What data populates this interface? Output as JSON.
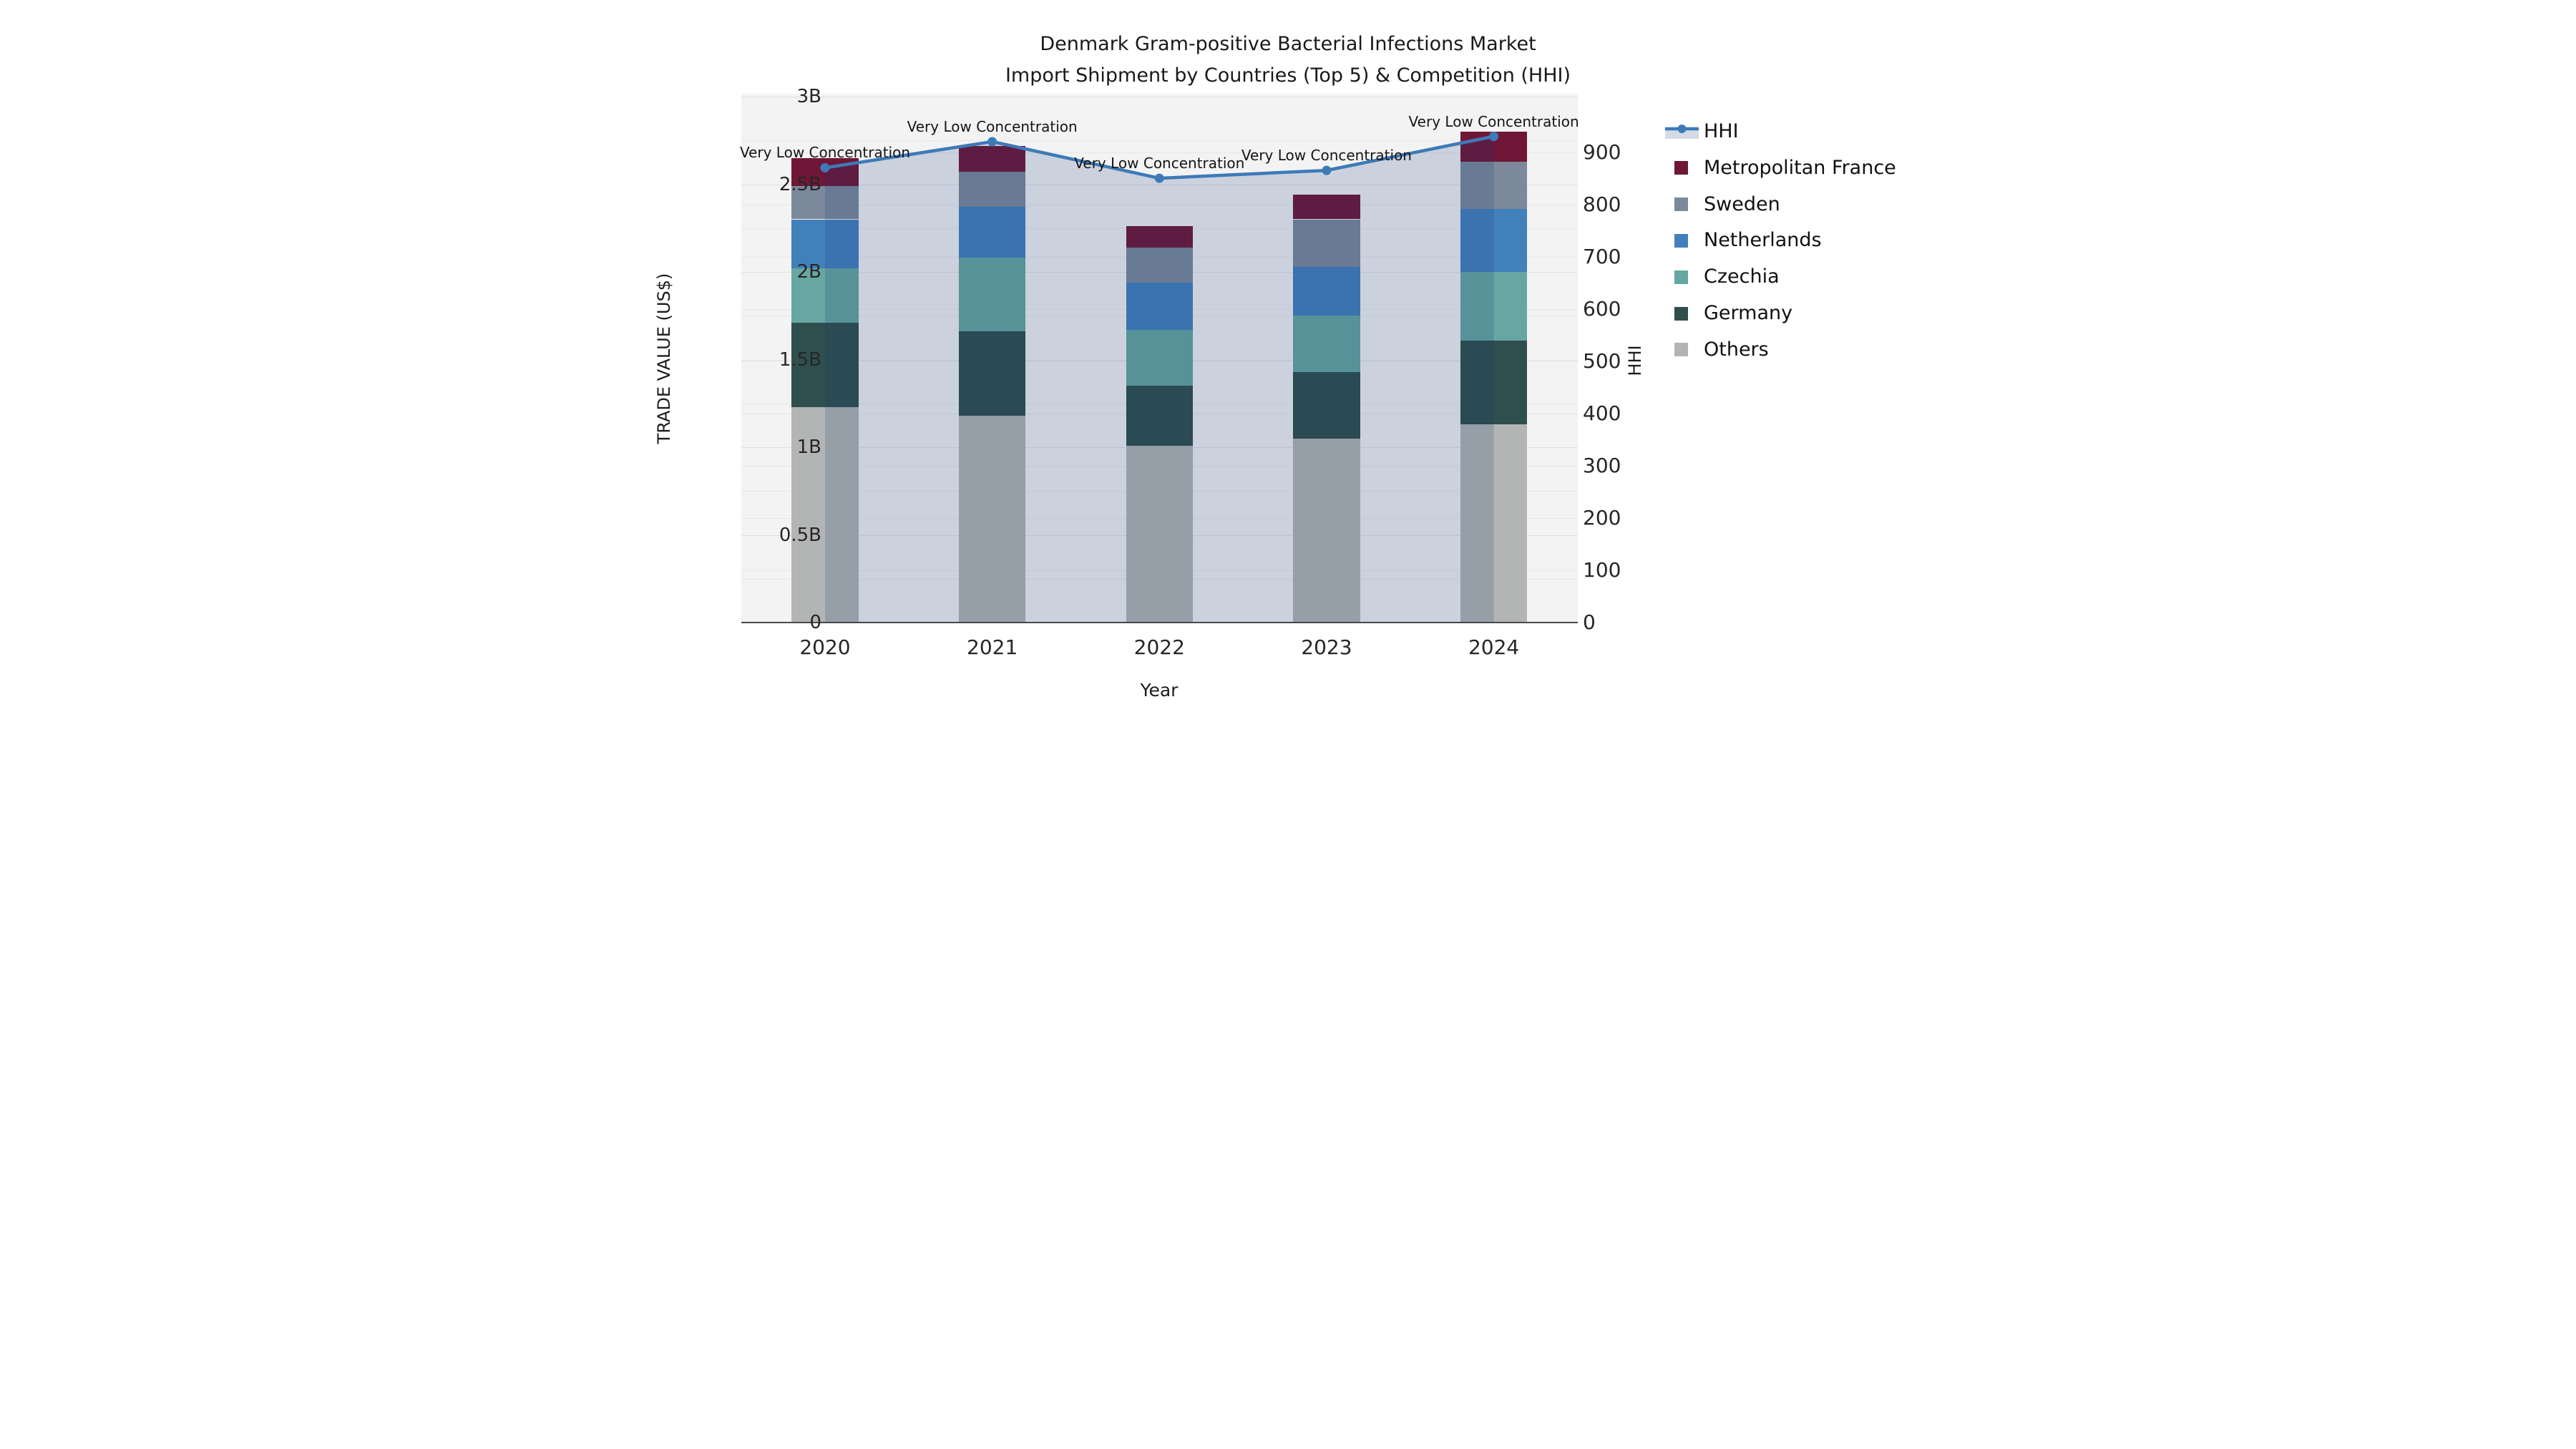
{
  "title": {
    "line1": "Denmark Gram-positive Bacterial Infections Market",
    "line2": "Import Shipment by Countries (Top 5) & Competition (HHI)"
  },
  "axes": {
    "x_label": "Year",
    "y_left_label": "TRADE VALUE (US$)",
    "y_right_label": "HHI",
    "y_left_ticks": [
      "0",
      "0.5B",
      "1B",
      "1.5B",
      "2B",
      "2.5B",
      "3B"
    ],
    "y_left_tick_values_B": [
      0,
      0.5,
      1,
      1.5,
      2,
      2.5,
      3
    ],
    "y_right_ticks": [
      "0",
      "100",
      "200",
      "300",
      "400",
      "500",
      "600",
      "700",
      "800",
      "900"
    ],
    "y_right_tick_values": [
      0,
      100,
      200,
      300,
      400,
      500,
      600,
      700,
      800,
      900
    ]
  },
  "chart_data": {
    "type": "stacked-bar+line",
    "categories": [
      "2020",
      "2021",
      "2022",
      "2023",
      "2024"
    ],
    "value_unit": "billions of US$",
    "stack_order_bottom_to_top": [
      "Others",
      "Germany",
      "Czechia",
      "Netherlands",
      "Sweden",
      "Metropolitan France"
    ],
    "series": [
      {
        "name": "Metropolitan France",
        "color": "#701737",
        "values": [
          0.16,
          0.15,
          0.12,
          0.14,
          0.17
        ]
      },
      {
        "name": "Sweden",
        "color": "#7b899b",
        "values": [
          0.19,
          0.2,
          0.2,
          0.27,
          0.27
        ]
      },
      {
        "name": "Netherlands",
        "color": "#4280bc",
        "values": [
          0.28,
          0.29,
          0.27,
          0.28,
          0.36
        ]
      },
      {
        "name": "Czechia",
        "color": "#66a7a1",
        "values": [
          0.31,
          0.42,
          0.32,
          0.32,
          0.39
        ]
      },
      {
        "name": "Germany",
        "color": "#2f4f4e",
        "values": [
          0.48,
          0.48,
          0.34,
          0.38,
          0.48
        ]
      },
      {
        "name": "Others",
        "color": "#b3b5b4",
        "values": [
          1.23,
          1.18,
          1.01,
          1.05,
          1.13
        ]
      }
    ],
    "bar_totals_B": [
      2.65,
      2.72,
      2.26,
      2.44,
      2.8
    ],
    "line_series": {
      "name": "HHI",
      "color": "#3d7ab8",
      "area_fill_color": "rgba(20,55,115,0.18)",
      "values": [
        870,
        920,
        850,
        865,
        930
      ]
    },
    "point_annotations": [
      "Very Low Concentration",
      "Very Low Concentration",
      "Very Low Concentration",
      "Very Low Concentration",
      "Very Low Concentration"
    ],
    "ylim_left_B": [
      0,
      3.02
    ],
    "ylim_right": [
      0,
      1010
    ],
    "grid": true,
    "legend_position": "right-of-plot"
  },
  "legend": {
    "items": [
      {
        "label": "HHI",
        "type": "line",
        "color": "#3d7ab8"
      },
      {
        "label": "Metropolitan France",
        "type": "swatch",
        "color": "#701737"
      },
      {
        "label": "Sweden",
        "type": "swatch",
        "color": "#7b899b"
      },
      {
        "label": "Netherlands",
        "type": "swatch",
        "color": "#4280bc"
      },
      {
        "label": "Czechia",
        "type": "swatch",
        "color": "#66a7a1"
      },
      {
        "label": "Germany",
        "type": "swatch",
        "color": "#2f4f4e"
      },
      {
        "label": "Others",
        "type": "swatch",
        "color": "#b3b5b4"
      }
    ]
  }
}
